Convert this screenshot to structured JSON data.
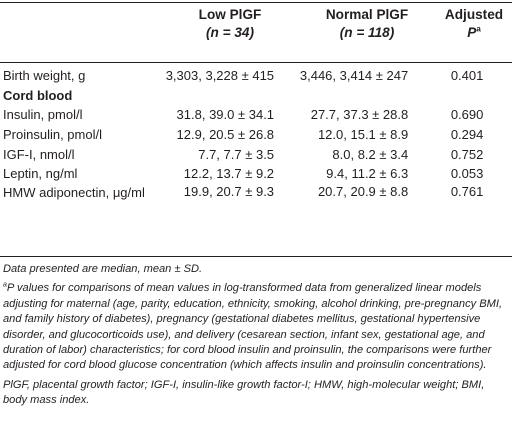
{
  "header": {
    "low_title": "Low PlGF",
    "low_n": "(n = 34)",
    "normal_title": "Normal PlGF",
    "normal_n": "(n = 118)",
    "p_title": "Adjusted",
    "p_symbol": "P",
    "p_sup": "a"
  },
  "rows": [
    {
      "label": "Birth weight, g",
      "low": "3,303, 3,228 ± 415",
      "normal": "3,446, 3,414 ± 247",
      "p": "0.401"
    },
    {
      "label": "Cord blood",
      "section": true
    },
    {
      "label": "Insulin, pmol/l",
      "low": "31.8, 39.0 ± 34.1",
      "normal": "27.7, 37.3 ± 28.8",
      "p": "0.690"
    },
    {
      "label": "Proinsulin, pmol/l",
      "low": "12.9, 20.5 ± 26.8",
      "normal": "12.0, 15.1 ± 8.9",
      "p": "0.294"
    },
    {
      "label": "IGF-I, nmol/l",
      "low": "7.7, 7.7 ± 3.5",
      "normal": "8.0, 8.2 ± 3.4",
      "p": "0.752"
    },
    {
      "label": "Leptin, ng/ml",
      "low": "12.2, 13.7 ± 9.2",
      "normal": "9.4, 11.2 ± 6.3",
      "p": "0.053"
    },
    {
      "label": "HMW adiponectin, μg/ml",
      "low": "19.9, 20.7 ± 9.3",
      "normal": "20.7, 20.9 ± 8.8",
      "p": "0.761"
    }
  ],
  "notes": {
    "data_presented": "Data presented are median, mean ± SD.",
    "footnote_mark": "a",
    "footnote_text": "P values for comparisons of mean values in log-transformed data from generalized linear models adjusting for maternal (age, parity, education, ethnicity, smoking, alcohol drinking, pre-pregnancy BMI, and family history of diabetes), pregnancy (gestational diabetes mellitus, gestational hypertensive disorder, and glucocorticoids use), and delivery (cesarean section, infant sex, gestational age, and duration of labor) characteristics; for cord blood insulin and proinsulin, the comparisons were further adjusted for cord blood glucose concentration (which affects insulin and proinsulin concentrations).",
    "abbreviations": "PlGF, placental growth factor; IGF-I, insulin-like growth factor-I; HMW, high-molecular weight; BMI, body mass index."
  }
}
